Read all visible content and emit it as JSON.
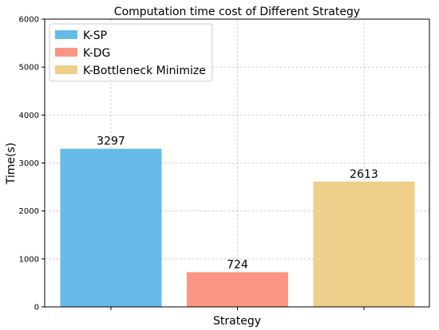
{
  "chart_data": {
    "type": "bar",
    "title": "Computation time cost of Different Strategy",
    "xlabel": "Strategy",
    "ylabel": "Time(s)",
    "ylim": [
      0,
      6000
    ],
    "yticks": [
      0,
      1000,
      2000,
      3000,
      4000,
      5000,
      6000
    ],
    "grid": true,
    "legend_position": "top-left",
    "series": [
      {
        "name": "K-SP",
        "value": 3297,
        "color": "#66bbe8"
      },
      {
        "name": "K-DG",
        "value": 724,
        "color": "#fb9682"
      },
      {
        "name": "K-Bottleneck Minimize",
        "value": 2613,
        "color": "#eece88"
      }
    ]
  }
}
